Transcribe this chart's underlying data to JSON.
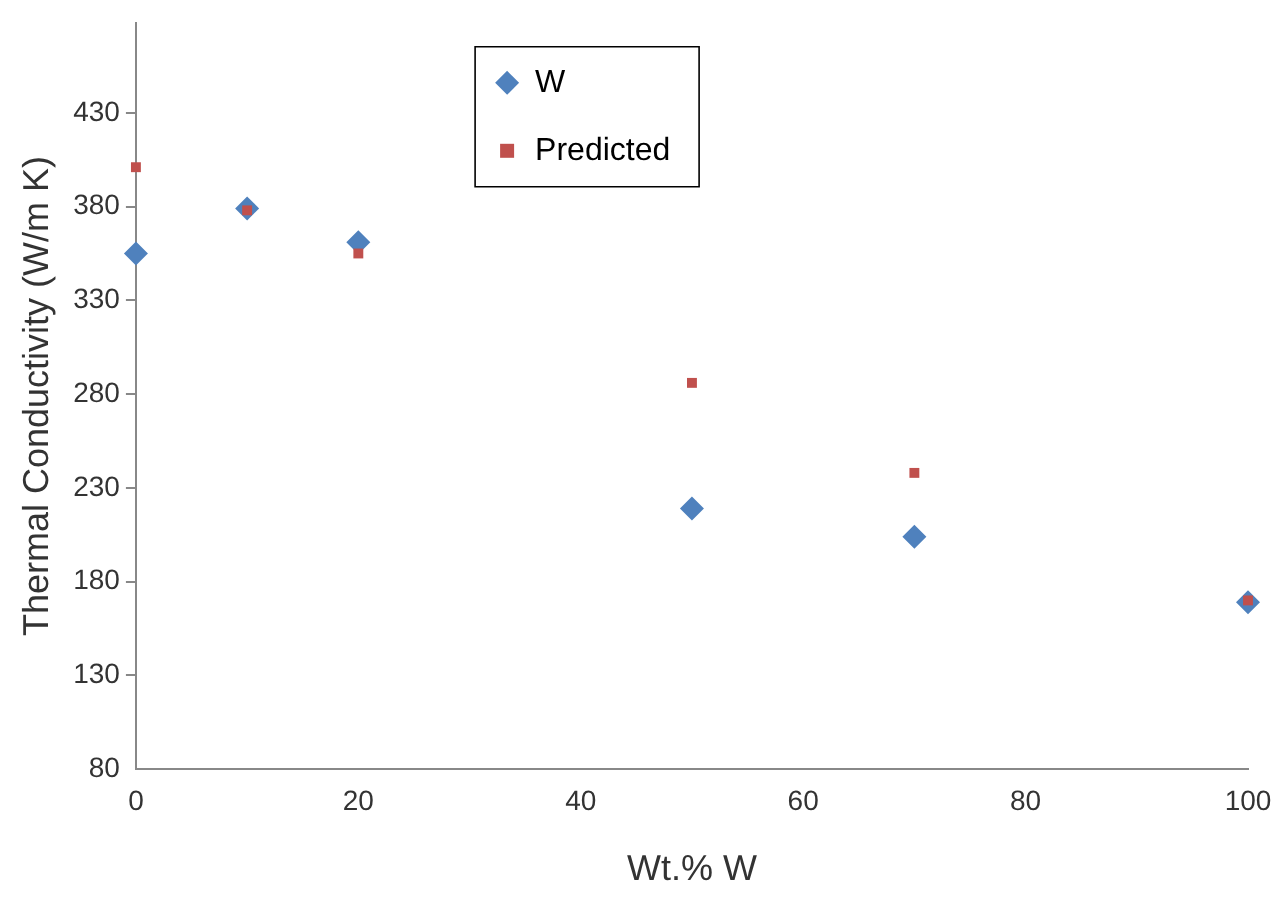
{
  "chart_data": {
    "type": "scatter",
    "xlabel": "Wt.% W",
    "ylabel": "Thermal Conductivity (W/m K)",
    "xlim": [
      0,
      100
    ],
    "xticks": [
      0,
      20,
      40,
      60,
      80,
      100
    ],
    "ylim": [
      80,
      478
    ],
    "yticks": [
      80,
      130,
      180,
      230,
      280,
      330,
      380,
      430
    ],
    "grid": false,
    "legend": "top",
    "series": [
      {
        "name": "W",
        "color": "#4f81bd",
        "marker": "diamond",
        "x": [
          0,
          10,
          20,
          50,
          70,
          100
        ],
        "values": [
          355,
          379,
          361,
          219,
          204,
          169
        ]
      },
      {
        "name": "Predicted",
        "color": "#c0504d",
        "marker": "square",
        "x": [
          0,
          10,
          20,
          50,
          70,
          100
        ],
        "values": [
          401,
          378,
          355,
          286,
          238,
          170
        ]
      }
    ]
  }
}
